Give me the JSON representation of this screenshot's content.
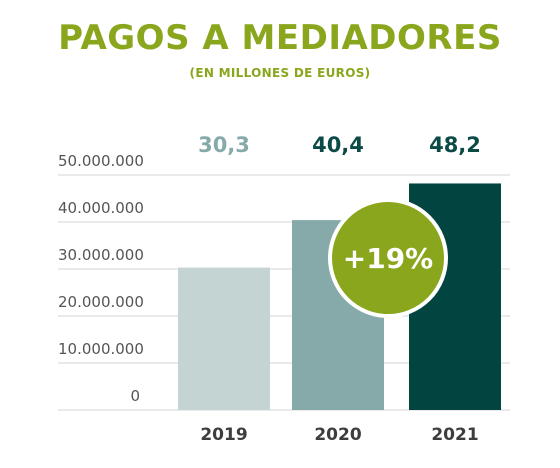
{
  "title": "PAGOS A MEDIADORES",
  "subtitle": "(EN MILLONES DE EUROS)",
  "badge": "+19%",
  "colors": {
    "accent": "#8aa61c",
    "bar_2019": "#c3d4d3",
    "bar_2020": "#86aaa9",
    "bar_2021": "#024440",
    "label_2019": "#86aaa9",
    "label_2020": "#0c4a45",
    "label_2021": "#0c4a45",
    "axis_text": "#555555",
    "grid": "#d6d6d6"
  },
  "chart_data": {
    "type": "bar",
    "categories": [
      "2019",
      "2020",
      "2021"
    ],
    "values": [
      30.3,
      40.4,
      48.2
    ],
    "value_labels": [
      "30,3",
      "40,4",
      "48,2"
    ],
    "y_ticks": [
      "0",
      "10.000.000",
      "20.000.000",
      "30.000.000",
      "40.000.000",
      "50.000.000"
    ],
    "ylim": [
      0,
      50
    ],
    "grid": true
  }
}
